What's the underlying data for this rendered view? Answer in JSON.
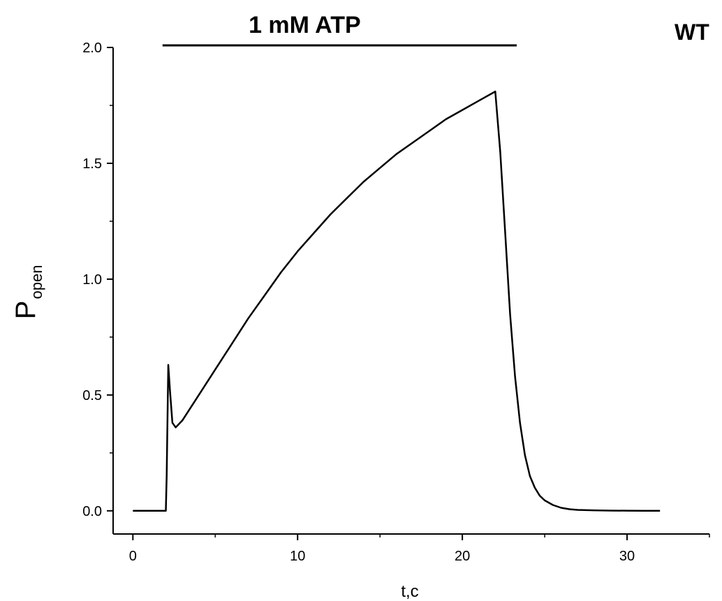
{
  "chart_data": {
    "type": "line",
    "panel_label": "WT",
    "annotation": {
      "text": "1 mM ATP",
      "x_start": 1.8,
      "x_end": 23.3
    },
    "xlabel": "t,c",
    "ylabel": {
      "main": "P",
      "sub": "open"
    },
    "xlim": [
      -1.2,
      35
    ],
    "ylim": [
      -0.1,
      2.0
    ],
    "x_ticks": [
      0,
      10,
      20,
      30
    ],
    "x_tick_labels": [
      "0",
      "10",
      "20",
      "30"
    ],
    "y_ticks": [
      0.0,
      0.5,
      1.0,
      1.5,
      2.0
    ],
    "y_tick_labels": [
      "0.0",
      "0.5",
      "1.0",
      "1.5",
      "2.0"
    ],
    "grid": false,
    "series": [
      {
        "color": "#000000",
        "x": [
          0,
          2.0,
          2.05,
          2.15,
          2.25,
          2.4,
          2.6,
          3,
          4,
          5,
          6,
          7,
          8,
          9,
          10,
          11,
          12,
          13,
          14,
          15,
          16,
          17,
          18,
          19,
          20,
          21,
          22,
          22.3,
          22.6,
          22.9,
          23.2,
          23.5,
          23.8,
          24.1,
          24.4,
          24.7,
          25,
          25.5,
          26,
          26.5,
          27,
          28,
          29,
          30,
          31,
          32
        ],
        "y": [
          0,
          0,
          0.15,
          0.63,
          0.52,
          0.38,
          0.36,
          0.39,
          0.5,
          0.61,
          0.72,
          0.83,
          0.93,
          1.03,
          1.12,
          1.2,
          1.28,
          1.35,
          1.42,
          1.48,
          1.54,
          1.59,
          1.64,
          1.69,
          1.73,
          1.77,
          1.81,
          1.55,
          1.2,
          0.85,
          0.58,
          0.38,
          0.24,
          0.15,
          0.1,
          0.065,
          0.045,
          0.025,
          0.013,
          0.007,
          0.004,
          0.002,
          0.001,
          0.0005,
          0.0002,
          0.0001
        ]
      }
    ]
  }
}
